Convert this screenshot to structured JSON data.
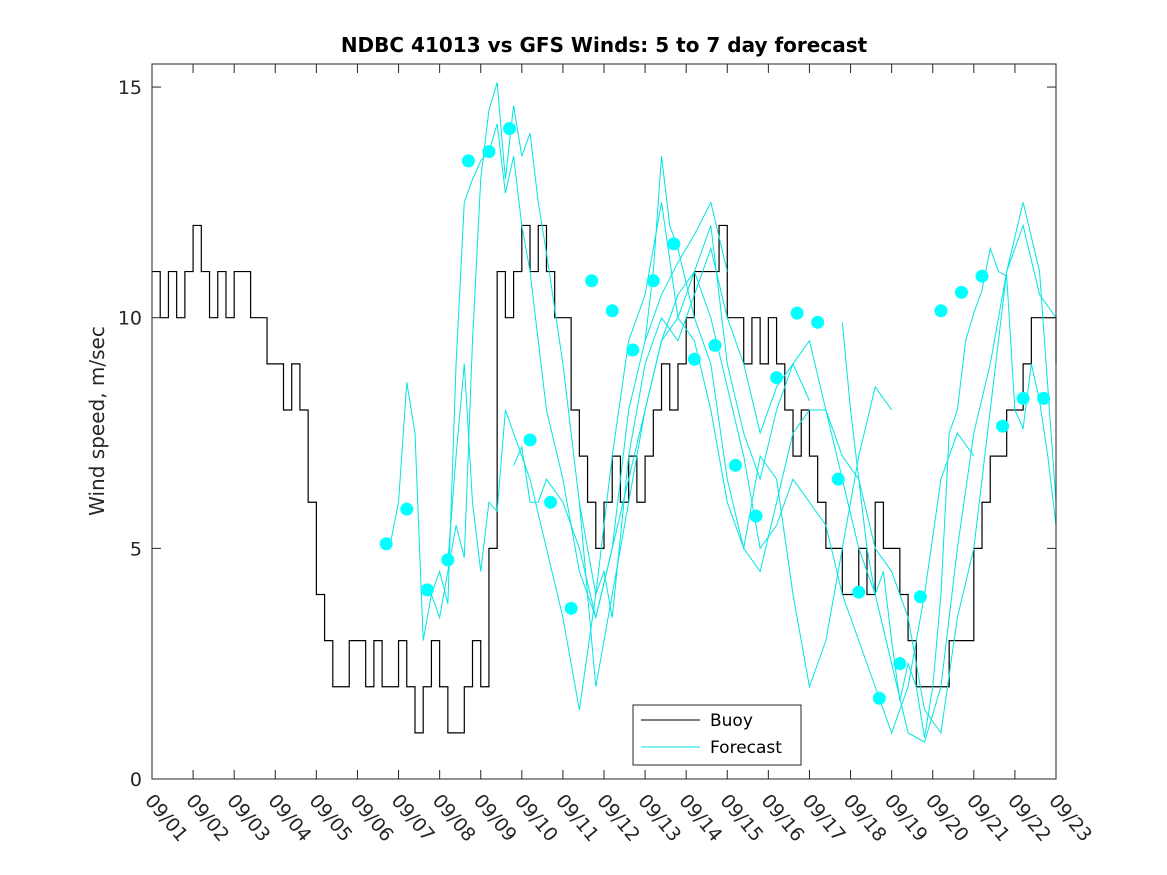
{
  "chart_data": {
    "type": "line",
    "title": "NDBC 41013 vs GFS Winds: 5 to 7 day forecast",
    "xlabel": "",
    "ylabel": "Wind speed, m/sec",
    "xlim": [
      0,
      22
    ],
    "ylim": [
      0,
      15.5
    ],
    "x_ticks": [
      "09/01",
      "09/02",
      "09/03",
      "09/04",
      "09/05",
      "09/06",
      "09/07",
      "09/08",
      "09/09",
      "09/10",
      "09/11",
      "09/12",
      "09/13",
      "09/14",
      "09/15",
      "09/16",
      "09/17",
      "09/18",
      "09/19",
      "09/20",
      "09/21",
      "09/22",
      "09/23"
    ],
    "y_ticks": [
      0,
      5,
      10,
      15
    ],
    "legend": {
      "position": "bottom-center",
      "entries": [
        "Buoy",
        "Forecast"
      ]
    },
    "colors": {
      "buoy": "#000000",
      "forecast": "#00e5e5",
      "marker": "#00ffff",
      "axes": "#262626"
    },
    "series": [
      {
        "name": "Buoy",
        "x": [
          0.0,
          0.2,
          0.4,
          0.6,
          0.8,
          1.0,
          1.2,
          1.4,
          1.6,
          1.8,
          2.0,
          2.2,
          2.4,
          2.6,
          2.8,
          3.0,
          3.2,
          3.4,
          3.6,
          3.8,
          4.0,
          4.2,
          4.4,
          4.6,
          4.8,
          5.0,
          5.2,
          5.4,
          5.6,
          5.8,
          6.0,
          6.2,
          6.4,
          6.6,
          6.8,
          7.0,
          7.2,
          7.4,
          7.6,
          7.8,
          8.0,
          8.2,
          8.4,
          8.6,
          8.8,
          9.0,
          9.2,
          9.4,
          9.6,
          9.8,
          10.0,
          10.2,
          10.4,
          10.6,
          10.8,
          11.0,
          11.2,
          11.4,
          11.6,
          11.8,
          12.0,
          12.2,
          12.4,
          12.6,
          12.8,
          13.0,
          13.2,
          13.4,
          13.6,
          13.8,
          14.0,
          14.2,
          14.4,
          14.6,
          14.8,
          15.0,
          15.2,
          15.4,
          15.6,
          15.8,
          16.0,
          16.2,
          16.4,
          16.6,
          16.8,
          17.0,
          17.2,
          17.4,
          17.6,
          17.8,
          18.0,
          18.2,
          18.4,
          18.6,
          18.8,
          19.0,
          19.2,
          19.4,
          19.6,
          19.8,
          20.0,
          20.2,
          20.4,
          20.6,
          20.8,
          21.0,
          21.2,
          21.4,
          21.6,
          21.8,
          22.0
        ],
        "values": [
          11,
          10,
          11,
          10,
          11,
          12,
          11,
          10,
          11,
          10,
          11,
          11,
          10,
          10,
          9,
          9,
          8,
          9,
          8,
          6,
          4,
          3,
          2,
          2,
          3,
          3,
          2,
          3,
          2,
          2,
          3,
          2,
          1,
          2,
          3,
          2,
          1,
          1,
          2,
          3,
          2,
          5,
          11,
          10,
          11,
          12,
          11,
          12,
          11,
          10,
          10,
          8,
          7,
          6,
          5,
          6,
          7,
          6,
          7,
          6,
          7,
          8,
          9,
          8,
          9,
          10,
          11,
          11,
          11,
          12,
          10,
          10,
          9,
          10,
          9,
          10,
          9,
          8,
          7,
          8,
          7,
          6,
          5,
          5,
          4,
          4,
          5,
          4,
          6,
          5,
          5,
          4,
          3,
          2,
          2,
          2,
          2,
          3,
          3,
          3,
          5,
          6,
          7,
          7,
          8,
          8,
          9,
          10,
          10,
          10,
          9
        ]
      },
      {
        "name": "Forecast",
        "runs": [
          {
            "x": [
              5.8,
              6.0,
              6.2,
              6.4,
              6.6,
              6.8,
              7.0,
              7.2,
              7.4,
              7.6,
              7.8,
              8.0,
              8.2,
              8.4,
              8.6,
              8.8,
              9.0,
              9.2,
              9.4,
              9.6,
              10.0,
              10.4,
              10.8,
              11.2,
              11.6,
              12.0,
              12.4,
              12.8,
              13.2,
              13.6,
              14.0
            ],
            "values": [
              5.1,
              6.0,
              8.6,
              7.5,
              3.0,
              4.0,
              4.5,
              3.8,
              9.0,
              12.5,
              13.0,
              13.4,
              13.6,
              14.2,
              12.7,
              13.5,
              12.0,
              11.0,
              9.5,
              8.0,
              6.5,
              4.5,
              3.5,
              5.0,
              8.0,
              9.5,
              10.5,
              11.2,
              11.8,
              12.5,
              11.0
            ]
          },
          {
            "x": [
              6.8,
              7.0,
              7.2,
              7.4,
              7.6,
              7.8,
              8.0,
              8.2,
              8.4,
              8.6,
              8.8,
              9.0,
              9.2,
              9.4,
              9.6,
              10.0,
              10.4,
              10.8,
              11.2,
              11.6,
              12.0,
              12.4,
              12.8,
              13.2,
              13.6,
              14.0,
              14.4,
              14.8,
              15.2,
              15.6,
              16.0
            ],
            "values": [
              4.0,
              3.5,
              4.5,
              5.5,
              4.8,
              9.5,
              13.0,
              14.5,
              15.1,
              13.0,
              14.6,
              13.5,
              14.0,
              12.5,
              11.4,
              9.0,
              6.0,
              2.0,
              4.0,
              6.0,
              8.0,
              9.5,
              10.0,
              11.0,
              12.0,
              9.0,
              7.5,
              6.5,
              8.0,
              9.0,
              8.2
            ]
          },
          {
            "x": [
              7.2,
              7.4,
              7.6,
              7.8,
              8.0,
              8.2,
              8.4,
              8.6,
              8.8,
              9.2,
              9.6,
              10.0,
              10.4,
              10.8,
              11.2,
              11.6,
              12.0,
              12.4,
              12.8,
              13.2,
              13.6,
              14.0,
              14.4,
              14.8,
              15.2,
              15.6,
              16.0,
              16.4,
              16.8,
              17.2,
              17.6,
              18.0
            ],
            "values": [
              4.7,
              7.0,
              9.0,
              6.0,
              4.5,
              6.0,
              5.8,
              8.0,
              7.5,
              6.5,
              5.0,
              3.5,
              1.5,
              4.0,
              7.0,
              9.5,
              10.5,
              12.5,
              10.0,
              9.5,
              8.0,
              6.0,
              5.0,
              7.0,
              6.5,
              4.0,
              2.0,
              3.0,
              5.0,
              7.0,
              8.5,
              8.0
            ]
          },
          {
            "x": [
              8.8,
              9.0,
              9.2,
              9.4,
              9.6,
              10.0,
              10.4,
              10.8,
              11.2,
              11.6,
              12.0,
              12.4,
              12.8,
              13.2,
              13.6,
              14.0,
              14.4,
              14.8,
              15.2,
              15.6,
              16.0,
              16.4,
              16.8,
              17.2,
              17.6,
              18.0,
              18.4,
              18.8,
              19.2,
              19.6,
              20.0
            ],
            "values": [
              6.8,
              7.2,
              6.0,
              6.0,
              6.5,
              6.0,
              5.0,
              3.5,
              5.0,
              6.5,
              8.0,
              9.5,
              10.5,
              11.0,
              10.0,
              8.5,
              7.0,
              5.0,
              5.5,
              6.5,
              6.0,
              5.5,
              4.0,
              3.0,
              2.0,
              1.0,
              2.0,
              4.0,
              6.5,
              7.5,
              7.0
            ]
          },
          {
            "x": [
              10.4,
              10.6,
              10.8,
              11.0,
              11.2,
              11.6,
              12.0,
              12.4,
              12.8,
              13.2,
              13.6,
              14.0,
              14.4,
              14.8,
              15.2,
              15.6,
              16.0,
              16.4,
              16.8,
              17.2,
              17.6,
              18.0,
              18.4,
              18.8,
              19.2,
              19.6,
              20.0,
              20.4,
              20.8,
              21.2,
              21.6,
              22.0
            ],
            "values": [
              6.0,
              5.0,
              4.0,
              4.5,
              3.5,
              7.0,
              9.0,
              10.0,
              9.5,
              10.5,
              11.5,
              10.0,
              9.0,
              7.5,
              8.5,
              9.0,
              9.5,
              8.0,
              7.0,
              6.5,
              5.0,
              4.5,
              3.5,
              1.5,
              1.0,
              3.5,
              5.0,
              8.0,
              11.0,
              12.0,
              10.5,
              10.0
            ]
          },
          {
            "x": [
              12.0,
              12.2,
              12.4,
              12.6,
              12.8,
              13.2,
              13.6,
              14.0,
              14.4,
              14.8,
              15.2,
              15.6,
              16.0,
              16.4,
              16.8,
              17.2,
              17.6,
              18.0,
              18.4,
              18.8,
              19.2,
              19.6,
              20.0,
              20.4,
              20.8,
              21.2,
              21.6,
              22.0
            ],
            "values": [
              9.5,
              11.0,
              13.5,
              12.0,
              11.5,
              10.0,
              9.0,
              6.5,
              5.0,
              4.5,
              6.0,
              7.5,
              8.0,
              8.0,
              6.5,
              5.0,
              4.0,
              2.5,
              1.0,
              0.8,
              2.0,
              5.0,
              7.5,
              9.0,
              11.0,
              12.5,
              11.0,
              6.0
            ]
          },
          {
            "x": [
              16.8,
              17.0,
              17.2,
              17.4,
              17.6,
              17.8,
              18.0,
              18.2,
              18.4,
              18.6,
              18.8,
              19.0,
              19.2,
              19.4,
              19.6,
              19.8,
              20.0,
              20.2,
              20.4,
              20.6,
              20.8,
              21.0,
              21.2,
              21.4,
              21.6,
              21.8,
              22.0
            ],
            "values": [
              9.9,
              8.0,
              6.5,
              5.0,
              4.0,
              4.5,
              3.0,
              1.7,
              2.5,
              2.0,
              0.9,
              2.0,
              4.0,
              7.5,
              8.0,
              9.5,
              10.1,
              10.6,
              11.5,
              11.0,
              10.9,
              8.0,
              7.6,
              9.0,
              8.2,
              7.0,
              5.5
            ]
          }
        ],
        "markers": {
          "x": [
            5.7,
            6.2,
            6.7,
            7.2,
            7.7,
            8.2,
            8.7,
            9.2,
            9.7,
            10.2,
            10.7,
            11.2,
            11.7,
            12.2,
            12.7,
            13.2,
            13.7,
            14.2,
            14.7,
            15.2,
            15.7,
            16.2,
            16.7,
            17.2,
            17.7,
            18.2,
            18.7,
            19.2,
            19.7,
            20.2,
            20.7,
            21.2,
            21.7
          ],
          "values": [
            5.1,
            5.85,
            4.1,
            4.75,
            13.4,
            13.6,
            14.1,
            7.35,
            6.0,
            3.7,
            10.8,
            10.15,
            9.3,
            10.8,
            11.6,
            9.1,
            9.4,
            6.8,
            5.7,
            8.7,
            10.1,
            9.9,
            6.5,
            4.05,
            1.75,
            2.5,
            3.95,
            10.15,
            10.55,
            10.9,
            7.65,
            8.25,
            8.25
          ]
        }
      }
    ]
  }
}
